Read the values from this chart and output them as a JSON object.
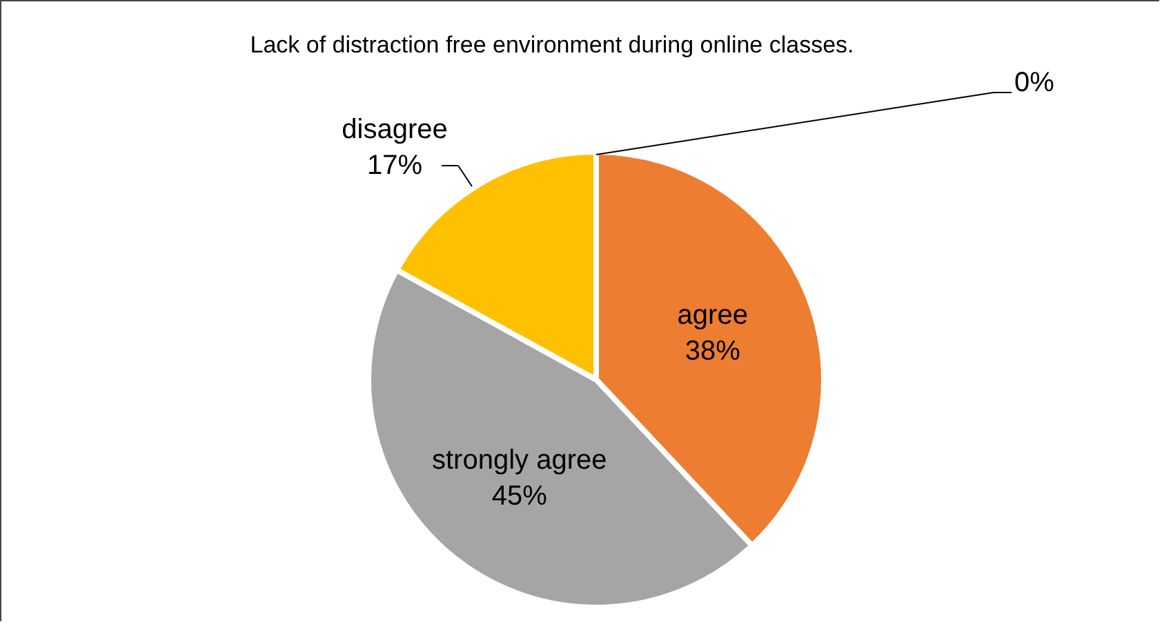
{
  "chart_data": {
    "type": "pie",
    "title": "Lack of distraction free environment during online classes.",
    "categories": [
      "agree",
      "strongly agree",
      "disagree",
      null
    ],
    "values": [
      38,
      45,
      17,
      0
    ],
    "colors": [
      "#ed7d31",
      "#a5a5a5",
      "#ffc000",
      "#5b9bd5"
    ],
    "value_labels": [
      "38%",
      "45%",
      "17%",
      "0%"
    ]
  }
}
